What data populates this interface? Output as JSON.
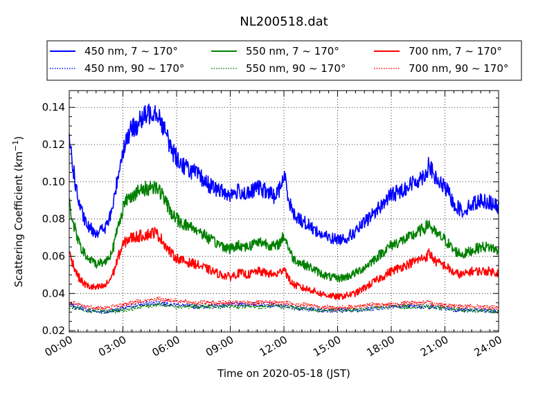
{
  "chart_data": {
    "type": "line",
    "title": "NL200518.dat",
    "xlabel": "Time on 2020-05-18 (JST)",
    "ylabel": "Scattering Coefficient (km",
    "ylabel_sup": "−1",
    "ylabel_end": ")",
    "xlim": [
      0,
      24
    ],
    "ylim": [
      0.0193,
      0.149
    ],
    "x_ticks": [
      0,
      3,
      6,
      9,
      12,
      15,
      18,
      21,
      24
    ],
    "x_tick_labels": [
      "00:00",
      "03:00",
      "06:00",
      "09:00",
      "12:00",
      "15:00",
      "18:00",
      "21:00",
      "24:00"
    ],
    "y_ticks": [
      0.02,
      0.04,
      0.06,
      0.08,
      0.1,
      0.12,
      0.14
    ],
    "y_tick_labels": [
      "0.02",
      "0.04",
      "0.06",
      "0.08",
      "0.10",
      "0.12",
      "0.14"
    ],
    "grid": true,
    "legend_position": "top",
    "series": [
      {
        "name": "450 nm, 7 ~ 170°",
        "color": "#0000ff",
        "style": "solid",
        "x": [
          0,
          0.25,
          0.5,
          0.75,
          1,
          1.5,
          2,
          2.25,
          2.5,
          2.75,
          3,
          3.25,
          3.5,
          4,
          4.5,
          4.75,
          5,
          5.25,
          5.5,
          5.75,
          6,
          6.25,
          6.5,
          7,
          7.5,
          8,
          8.5,
          9,
          9.5,
          10,
          10.5,
          11,
          11.5,
          11.75,
          12,
          12.1,
          12.25,
          12.5,
          13,
          13.5,
          14,
          14.5,
          15,
          15.5,
          16,
          16.5,
          17,
          17.5,
          18,
          18.5,
          19,
          19.5,
          20,
          20.1,
          20.25,
          20.5,
          21,
          21.25,
          21.5,
          22,
          22.5,
          23,
          23.5,
          24
        ],
        "y": [
          0.124,
          0.105,
          0.09,
          0.082,
          0.076,
          0.073,
          0.075,
          0.08,
          0.09,
          0.105,
          0.117,
          0.124,
          0.128,
          0.133,
          0.137,
          0.139,
          0.136,
          0.13,
          0.123,
          0.117,
          0.113,
          0.11,
          0.108,
          0.105,
          0.101,
          0.097,
          0.095,
          0.093,
          0.095,
          0.093,
          0.097,
          0.095,
          0.092,
          0.096,
          0.103,
          0.1,
          0.092,
          0.083,
          0.079,
          0.076,
          0.072,
          0.07,
          0.069,
          0.07,
          0.073,
          0.078,
          0.083,
          0.088,
          0.093,
          0.095,
          0.098,
          0.101,
          0.105,
          0.111,
          0.106,
          0.101,
          0.097,
          0.093,
          0.088,
          0.084,
          0.088,
          0.09,
          0.089,
          0.086
        ]
      },
      {
        "name": "550 nm, 7 ~ 170°",
        "color": "#008000",
        "style": "solid",
        "x": [
          0,
          0.25,
          0.5,
          0.75,
          1,
          1.5,
          2,
          2.25,
          2.5,
          2.75,
          3,
          3.25,
          3.5,
          4,
          4.5,
          4.75,
          5,
          5.25,
          5.5,
          5.75,
          6,
          6.25,
          6.5,
          7,
          7.5,
          8,
          8.5,
          9,
          9.5,
          10,
          10.5,
          11,
          11.5,
          11.75,
          12,
          12.1,
          12.25,
          12.5,
          13,
          13.5,
          14,
          14.5,
          15,
          15.5,
          16,
          16.5,
          17,
          17.5,
          18,
          18.5,
          19,
          19.5,
          20,
          20.1,
          20.25,
          20.5,
          21,
          21.25,
          21.5,
          22,
          22.5,
          23,
          23.5,
          24
        ],
        "y": [
          0.088,
          0.077,
          0.068,
          0.063,
          0.059,
          0.056,
          0.057,
          0.06,
          0.066,
          0.077,
          0.086,
          0.091,
          0.093,
          0.095,
          0.097,
          0.098,
          0.096,
          0.092,
          0.087,
          0.083,
          0.08,
          0.078,
          0.077,
          0.075,
          0.072,
          0.068,
          0.066,
          0.064,
          0.066,
          0.065,
          0.068,
          0.067,
          0.065,
          0.067,
          0.071,
          0.069,
          0.065,
          0.059,
          0.056,
          0.054,
          0.051,
          0.049,
          0.048,
          0.049,
          0.051,
          0.054,
          0.058,
          0.062,
          0.066,
          0.068,
          0.07,
          0.073,
          0.076,
          0.078,
          0.075,
          0.072,
          0.069,
          0.066,
          0.063,
          0.061,
          0.063,
          0.065,
          0.065,
          0.063
        ]
      },
      {
        "name": "700 nm, 7 ~ 170°",
        "color": "#ff0000",
        "style": "solid",
        "x": [
          0,
          0.25,
          0.5,
          0.75,
          1,
          1.5,
          2,
          2.25,
          2.5,
          2.75,
          3,
          3.25,
          3.5,
          4,
          4.5,
          4.75,
          5,
          5.25,
          5.5,
          5.75,
          6,
          6.25,
          6.5,
          7,
          7.5,
          8,
          8.5,
          9,
          9.5,
          10,
          10.5,
          11,
          11.5,
          11.75,
          12,
          12.1,
          12.25,
          12.5,
          13,
          13.5,
          14,
          14.5,
          15,
          15.5,
          16,
          16.5,
          17,
          17.5,
          18,
          18.5,
          19,
          19.5,
          20,
          20.1,
          20.25,
          20.5,
          21,
          21.25,
          21.5,
          22,
          22.5,
          23,
          23.5,
          24
        ],
        "y": [
          0.062,
          0.055,
          0.049,
          0.046,
          0.044,
          0.043,
          0.044,
          0.047,
          0.052,
          0.06,
          0.066,
          0.069,
          0.07,
          0.071,
          0.072,
          0.073,
          0.071,
          0.068,
          0.064,
          0.061,
          0.059,
          0.058,
          0.057,
          0.056,
          0.054,
          0.052,
          0.05,
          0.049,
          0.051,
          0.05,
          0.052,
          0.051,
          0.05,
          0.051,
          0.054,
          0.052,
          0.048,
          0.045,
          0.043,
          0.042,
          0.04,
          0.039,
          0.038,
          0.039,
          0.04,
          0.043,
          0.046,
          0.049,
          0.052,
          0.054,
          0.056,
          0.058,
          0.06,
          0.062,
          0.06,
          0.057,
          0.055,
          0.053,
          0.051,
          0.05,
          0.052,
          0.052,
          0.052,
          0.051
        ]
      },
      {
        "name": "450 nm, 90 ~ 170°",
        "color": "#0000ff",
        "style": "dotted",
        "x": [
          0,
          1,
          2,
          3,
          4,
          5,
          6,
          7,
          8,
          9,
          10,
          11,
          12,
          13,
          14,
          15,
          16,
          17,
          18,
          19,
          20,
          21,
          22,
          23,
          24
        ],
        "y": [
          0.034,
          0.031,
          0.03,
          0.032,
          0.034,
          0.035,
          0.034,
          0.033,
          0.033,
          0.034,
          0.034,
          0.034,
          0.033,
          0.032,
          0.031,
          0.031,
          0.031,
          0.032,
          0.033,
          0.033,
          0.033,
          0.032,
          0.031,
          0.031,
          0.03
        ]
      },
      {
        "name": "550 nm, 90 ~ 170°",
        "color": "#008000",
        "style": "dotted",
        "x": [
          0,
          1,
          2,
          3,
          4,
          5,
          6,
          7,
          8,
          9,
          10,
          11,
          12,
          13,
          14,
          15,
          16,
          17,
          18,
          19,
          20,
          21,
          22,
          23,
          24
        ],
        "y": [
          0.033,
          0.031,
          0.03,
          0.031,
          0.033,
          0.034,
          0.033,
          0.033,
          0.033,
          0.033,
          0.033,
          0.033,
          0.033,
          0.032,
          0.031,
          0.031,
          0.031,
          0.032,
          0.033,
          0.033,
          0.033,
          0.032,
          0.031,
          0.031,
          0.03
        ]
      },
      {
        "name": "700 nm, 90 ~ 170°",
        "color": "#ff0000",
        "style": "dotted",
        "x": [
          0,
          1,
          2,
          3,
          4,
          5,
          6,
          7,
          8,
          9,
          10,
          11,
          12,
          13,
          14,
          15,
          16,
          17,
          18,
          19,
          20,
          21,
          22,
          23,
          24
        ],
        "y": [
          0.035,
          0.033,
          0.032,
          0.034,
          0.036,
          0.037,
          0.036,
          0.035,
          0.035,
          0.035,
          0.035,
          0.035,
          0.035,
          0.034,
          0.033,
          0.032,
          0.033,
          0.034,
          0.034,
          0.035,
          0.035,
          0.034,
          0.033,
          0.033,
          0.032
        ]
      }
    ]
  }
}
